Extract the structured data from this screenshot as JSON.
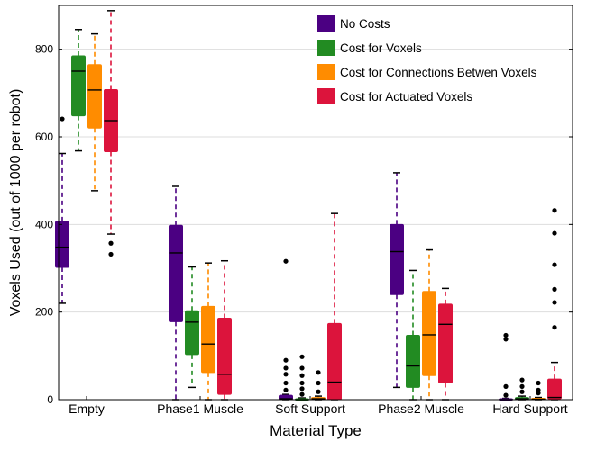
{
  "chart_data": {
    "type": "box",
    "xlabel": "Material Type",
    "ylabel": "Voxels Used (out of 1000 per robot)",
    "ylim": [
      0,
      900
    ],
    "yticks": [
      0,
      200,
      400,
      600,
      800
    ],
    "grid": "y",
    "legend_position": "top-right",
    "categories": [
      "Empty",
      "Phase1 Muscle",
      "Soft Support",
      "Phase2 Muscle",
      "Hard Support"
    ],
    "series": [
      {
        "name": "No Costs",
        "color": "#4B0082",
        "boxes": [
          {
            "whislo": 220,
            "q1": 302,
            "med": 348,
            "q3": 407,
            "whishi": 562,
            "fliers": [
              641
            ]
          },
          {
            "whislo": 0,
            "q1": 178,
            "med": 335,
            "q3": 398,
            "whishi": 487,
            "fliers": []
          },
          {
            "whislo": 0,
            "q1": 0,
            "med": 2,
            "q3": 10,
            "whishi": 12,
            "fliers": [
              22,
              38,
              58,
              72,
              90,
              316
            ]
          },
          {
            "whislo": 28,
            "q1": 240,
            "med": 338,
            "q3": 400,
            "whishi": 518,
            "fliers": []
          },
          {
            "whislo": 0,
            "q1": 0,
            "med": 0,
            "q3": 2,
            "whishi": 3,
            "fliers": [
              10,
              30,
              138,
              147
            ]
          }
        ]
      },
      {
        "name": "Cost for Voxels",
        "color": "#228B22",
        "boxes": [
          {
            "whislo": 568,
            "q1": 648,
            "med": 750,
            "q3": 785,
            "whishi": 845,
            "fliers": []
          },
          {
            "whislo": 28,
            "q1": 103,
            "med": 177,
            "q3": 203,
            "whishi": 303,
            "fliers": []
          },
          {
            "whislo": 0,
            "q1": 0,
            "med": 0,
            "q3": 2,
            "whishi": 4,
            "fliers": [
              12,
              25,
              38,
              55,
              72,
              98
            ]
          },
          {
            "whislo": 0,
            "q1": 28,
            "med": 77,
            "q3": 147,
            "whishi": 295,
            "fliers": []
          },
          {
            "whislo": 0,
            "q1": 0,
            "med": 2,
            "q3": 5,
            "whishi": 8,
            "fliers": [
              18,
              30,
              45
            ]
          }
        ]
      },
      {
        "name": "Cost for Connections Betwen Voxels",
        "color": "#FF8C00",
        "boxes": [
          {
            "whislo": 477,
            "q1": 620,
            "med": 707,
            "q3": 765,
            "whishi": 835,
            "fliers": []
          },
          {
            "whislo": 0,
            "q1": 62,
            "med": 127,
            "q3": 213,
            "whishi": 312,
            "fliers": []
          },
          {
            "whislo": 0,
            "q1": 0,
            "med": 2,
            "q3": 5,
            "whishi": 8,
            "fliers": [
              18,
              38,
              62
            ]
          },
          {
            "whislo": 0,
            "q1": 55,
            "med": 148,
            "q3": 247,
            "whishi": 342,
            "fliers": []
          },
          {
            "whislo": 0,
            "q1": 0,
            "med": 1,
            "q3": 3,
            "whishi": 5,
            "fliers": [
              15,
              22,
              38
            ]
          }
        ]
      },
      {
        "name": "Cost for Actuated Voxels",
        "color": "#DC143C",
        "boxes": [
          {
            "whislo": 378,
            "q1": 566,
            "med": 637,
            "q3": 708,
            "whishi": 888,
            "fliers": [
              332,
              357
            ]
          },
          {
            "whislo": 0,
            "q1": 12,
            "med": 58,
            "q3": 186,
            "whishi": 317,
            "fliers": []
          },
          {
            "whislo": 0,
            "q1": 0,
            "med": 40,
            "q3": 174,
            "whishi": 425,
            "fliers": []
          },
          {
            "whislo": 0,
            "q1": 38,
            "med": 172,
            "q3": 218,
            "whishi": 254,
            "fliers": []
          },
          {
            "whislo": 0,
            "q1": 2,
            "med": 5,
            "q3": 47,
            "whishi": 85,
            "fliers": [
              165,
              222,
              252,
              308,
              380,
              432
            ]
          }
        ]
      }
    ]
  }
}
